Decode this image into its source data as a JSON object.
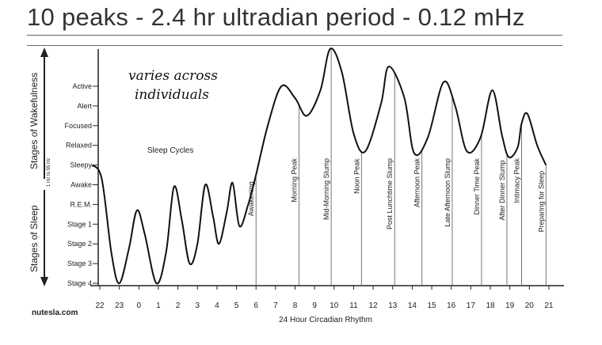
{
  "title": "10 peaks - 2.4 hr ultradian period - 0.12 mHz",
  "y_levels": [
    "Active",
    "Alert",
    "Focused",
    "Relaxed",
    "Sleepy",
    "Awake",
    "R.E.M.",
    "Stage 1",
    "Stage 2",
    "Stage 3",
    "Stage 4"
  ],
  "side_labels": {
    "wakefulness": "Stages of Wakefulness",
    "sleep": "Stages of Sleep",
    "freq": "1 Hz to 55 Hz"
  },
  "x_ticks": [
    "22",
    "23",
    "0",
    "1",
    "2",
    "3",
    "4",
    "5",
    "6",
    "7",
    "8",
    "9",
    "10",
    "11",
    "12",
    "13",
    "14",
    "15",
    "16",
    "17",
    "18",
    "19",
    "20",
    "21"
  ],
  "x_axis_label": "24 Hour Circadian Rhythm",
  "annotation": {
    "line1": "varies across",
    "line2": "individuals"
  },
  "sleep_cycles_label": "Sleep Cycles",
  "brand": "nutesla.com",
  "events": [
    {
      "label": "Awakening",
      "hour": 6.0
    },
    {
      "label": "Morning Peak",
      "hour": 8.2
    },
    {
      "label": "Mid-Morning Slump",
      "hour": 9.85
    },
    {
      "label": "Noon Peak",
      "hour": 11.4
    },
    {
      "label": "Post Lunchtime Slump",
      "hour": 13.1
    },
    {
      "label": "Afternoon Peak",
      "hour": 14.5
    },
    {
      "label": "Late Afternoon Slump",
      "hour": 16.05
    },
    {
      "label": "Dinner Time Peak",
      "hour": 17.55
    },
    {
      "label": "After Dinner Slump",
      "hour": 18.85
    },
    {
      "label": "Intimacy Peak",
      "hour": 19.6
    },
    {
      "label": "Preparing for Sleep",
      "hour": 20.85
    }
  ]
}
